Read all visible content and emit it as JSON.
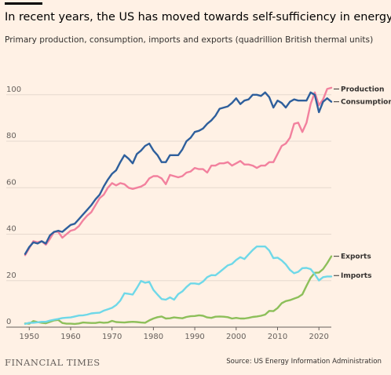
{
  "title": "In recent years, the US has moved towards self-sufficiency in energy",
  "subtitle": "Primary production, consumption, imports and exports (quadrillion British thermal units)",
  "brand": "FINANCIAL TIMES",
  "source": "Source: US Energy Information Administration",
  "chart_data": {
    "type": "line",
    "title": "In recent years, the US has moved towards self-sufficiency in energy",
    "subtitle": "Primary production, consumption, imports and exports (quadrillion British thermal units)",
    "xlim": [
      1949,
      2023
    ],
    "ylim": [
      0,
      105
    ],
    "xticks": [
      1950,
      1960,
      1970,
      1980,
      1990,
      2000,
      2010,
      2020
    ],
    "yticks": [
      0,
      20,
      40,
      60,
      80,
      100
    ],
    "grid": "horizontal",
    "legend": "end-of-line labels",
    "series": [
      {
        "name": "Production",
        "color": "#f2819e",
        "points": [
          [
            1949,
            31
          ],
          [
            1950,
            34
          ],
          [
            1951,
            37
          ],
          [
            1952,
            36.5
          ],
          [
            1953,
            37
          ],
          [
            1954,
            35.5
          ],
          [
            1955,
            38
          ],
          [
            1956,
            41
          ],
          [
            1957,
            41
          ],
          [
            1958,
            38.5
          ],
          [
            1959,
            40
          ],
          [
            1960,
            41.5
          ],
          [
            1961,
            42
          ],
          [
            1962,
            43.5
          ],
          [
            1963,
            46
          ],
          [
            1964,
            48
          ],
          [
            1965,
            49.5
          ],
          [
            1966,
            52.5
          ],
          [
            1967,
            55.5
          ],
          [
            1968,
            57
          ],
          [
            1969,
            60
          ],
          [
            1970,
            62
          ],
          [
            1971,
            61
          ],
          [
            1972,
            62
          ],
          [
            1973,
            61.5
          ],
          [
            1974,
            60
          ],
          [
            1975,
            59.5
          ],
          [
            1976,
            60
          ],
          [
            1977,
            60.5
          ],
          [
            1978,
            61.5
          ],
          [
            1979,
            64
          ],
          [
            1980,
            65
          ],
          [
            1981,
            65
          ],
          [
            1982,
            64
          ],
          [
            1983,
            61.5
          ],
          [
            1984,
            65.5
          ],
          [
            1985,
            65
          ],
          [
            1986,
            64.5
          ],
          [
            1987,
            65
          ],
          [
            1988,
            66.5
          ],
          [
            1989,
            67
          ],
          [
            1990,
            68.5
          ],
          [
            1991,
            68
          ],
          [
            1992,
            68
          ],
          [
            1993,
            66.5
          ],
          [
            1994,
            69.5
          ],
          [
            1995,
            69.5
          ],
          [
            1996,
            70.5
          ],
          [
            1997,
            70.5
          ],
          [
            1998,
            71
          ],
          [
            1999,
            69.5
          ],
          [
            2000,
            70.5
          ],
          [
            2001,
            71.5
          ],
          [
            2002,
            70
          ],
          [
            2003,
            70
          ],
          [
            2004,
            69.5
          ],
          [
            2005,
            68.5
          ],
          [
            2006,
            69.5
          ],
          [
            2007,
            69.5
          ],
          [
            2008,
            71
          ],
          [
            2009,
            71
          ],
          [
            2010,
            74.5
          ],
          [
            2011,
            78
          ],
          [
            2012,
            79
          ],
          [
            2013,
            81.5
          ],
          [
            2014,
            87.5
          ],
          [
            2015,
            88
          ],
          [
            2016,
            84
          ],
          [
            2017,
            88
          ],
          [
            2018,
            96
          ],
          [
            2019,
            101
          ],
          [
            2020,
            95.5
          ],
          [
            2021,
            98
          ],
          [
            2022,
            102.5
          ],
          [
            2023,
            103
          ]
        ]
      },
      {
        "name": "Consumption",
        "color": "#2e5f9c",
        "points": [
          [
            1949,
            31.5
          ],
          [
            1950,
            34.5
          ],
          [
            1951,
            36.5
          ],
          [
            1952,
            36
          ],
          [
            1953,
            37
          ],
          [
            1954,
            36
          ],
          [
            1955,
            39.5
          ],
          [
            1956,
            41
          ],
          [
            1957,
            41.5
          ],
          [
            1958,
            41
          ],
          [
            1959,
            42.5
          ],
          [
            1960,
            44
          ],
          [
            1961,
            44.5
          ],
          [
            1962,
            46.5
          ],
          [
            1963,
            48.5
          ],
          [
            1964,
            50.5
          ],
          [
            1965,
            52.5
          ],
          [
            1966,
            55
          ],
          [
            1967,
            57
          ],
          [
            1968,
            60.5
          ],
          [
            1969,
            63.5
          ],
          [
            1970,
            66
          ],
          [
            1971,
            67.5
          ],
          [
            1972,
            71
          ],
          [
            1973,
            74
          ],
          [
            1974,
            72.5
          ],
          [
            1975,
            70.5
          ],
          [
            1976,
            74.5
          ],
          [
            1977,
            76
          ],
          [
            1978,
            78
          ],
          [
            1979,
            79
          ],
          [
            1980,
            76
          ],
          [
            1981,
            74
          ],
          [
            1982,
            71
          ],
          [
            1983,
            71
          ],
          [
            1984,
            74
          ],
          [
            1985,
            74
          ],
          [
            1986,
            74
          ],
          [
            1987,
            76.5
          ],
          [
            1988,
            80
          ],
          [
            1989,
            81.5
          ],
          [
            1990,
            84
          ],
          [
            1991,
            84.5
          ],
          [
            1992,
            85.5
          ],
          [
            1993,
            87.5
          ],
          [
            1994,
            89
          ],
          [
            1995,
            91
          ],
          [
            1996,
            94
          ],
          [
            1997,
            94.5
          ],
          [
            1998,
            95
          ],
          [
            1999,
            96.5
          ],
          [
            2000,
            98.5
          ],
          [
            2001,
            96
          ],
          [
            2002,
            97.5
          ],
          [
            2003,
            98
          ],
          [
            2004,
            100
          ],
          [
            2005,
            100
          ],
          [
            2006,
            99.5
          ],
          [
            2007,
            101
          ],
          [
            2008,
            99
          ],
          [
            2009,
            94.5
          ],
          [
            2010,
            97.5
          ],
          [
            2011,
            96.5
          ],
          [
            2012,
            94.5
          ],
          [
            2013,
            97
          ],
          [
            2014,
            98
          ],
          [
            2015,
            97.5
          ],
          [
            2016,
            97.5
          ],
          [
            2017,
            97.5
          ],
          [
            2018,
            101
          ],
          [
            2019,
            100
          ],
          [
            2020,
            92.5
          ],
          [
            2021,
            97
          ],
          [
            2022,
            98.5
          ],
          [
            2023,
            97
          ]
        ]
      },
      {
        "name": "Exports",
        "color": "#8dbf5a",
        "points": [
          [
            1949,
            1.6
          ],
          [
            1950,
            1.5
          ],
          [
            1951,
            2.6
          ],
          [
            1952,
            2.2
          ],
          [
            1953,
            1.9
          ],
          [
            1954,
            1.7
          ],
          [
            1955,
            2.3
          ],
          [
            1956,
            2.9
          ],
          [
            1957,
            3.1
          ],
          [
            1958,
            1.8
          ],
          [
            1959,
            1.5
          ],
          [
            1960,
            1.5
          ],
          [
            1961,
            1.4
          ],
          [
            1962,
            1.6
          ],
          [
            1963,
            2
          ],
          [
            1964,
            1.9
          ],
          [
            1965,
            1.8
          ],
          [
            1966,
            1.8
          ],
          [
            1967,
            2.1
          ],
          [
            1968,
            1.9
          ],
          [
            1969,
            2
          ],
          [
            1970,
            2.7
          ],
          [
            1971,
            2.2
          ],
          [
            1972,
            2.1
          ],
          [
            1973,
            2
          ],
          [
            1974,
            2.2
          ],
          [
            1975,
            2.3
          ],
          [
            1976,
            2.2
          ],
          [
            1977,
            2
          ],
          [
            1978,
            1.9
          ],
          [
            1979,
            2.9
          ],
          [
            1980,
            3.7
          ],
          [
            1981,
            4.3
          ],
          [
            1982,
            4.6
          ],
          [
            1983,
            3.7
          ],
          [
            1984,
            3.8
          ],
          [
            1985,
            4.2
          ],
          [
            1986,
            4
          ],
          [
            1987,
            3.8
          ],
          [
            1988,
            4.4
          ],
          [
            1989,
            4.7
          ],
          [
            1990,
            4.8
          ],
          [
            1991,
            5.1
          ],
          [
            1992,
            4.9
          ],
          [
            1993,
            4.2
          ],
          [
            1994,
            4
          ],
          [
            1995,
            4.5
          ],
          [
            1996,
            4.6
          ],
          [
            1997,
            4.5
          ],
          [
            1998,
            4.3
          ],
          [
            1999,
            3.7
          ],
          [
            2000,
            4
          ],
          [
            2001,
            3.7
          ],
          [
            2002,
            3.7
          ],
          [
            2003,
            4
          ],
          [
            2004,
            4.4
          ],
          [
            2005,
            4.6
          ],
          [
            2006,
            4.9
          ],
          [
            2007,
            5.4
          ],
          [
            2008,
            7
          ],
          [
            2009,
            6.9
          ],
          [
            2010,
            8.2
          ],
          [
            2011,
            10.3
          ],
          [
            2012,
            11.2
          ],
          [
            2013,
            11.6
          ],
          [
            2014,
            12.3
          ],
          [
            2015,
            12.9
          ],
          [
            2016,
            14.1
          ],
          [
            2017,
            17.8
          ],
          [
            2018,
            21.2
          ],
          [
            2019,
            23.4
          ],
          [
            2020,
            23.5
          ],
          [
            2021,
            25
          ],
          [
            2022,
            27.5
          ],
          [
            2023,
            30.5
          ]
        ]
      },
      {
        "name": "Imports",
        "color": "#6fd8e8",
        "points": [
          [
            1949,
            1.4
          ],
          [
            1950,
            1.9
          ],
          [
            1951,
            1.9
          ],
          [
            1952,
            2.1
          ],
          [
            1953,
            2.3
          ],
          [
            1954,
            2.3
          ],
          [
            1955,
            2.8
          ],
          [
            1956,
            3.2
          ],
          [
            1957,
            3.5
          ],
          [
            1958,
            3.9
          ],
          [
            1959,
            4.1
          ],
          [
            1960,
            4.2
          ],
          [
            1961,
            4.6
          ],
          [
            1962,
            5
          ],
          [
            1963,
            5.1
          ],
          [
            1964,
            5.4
          ],
          [
            1965,
            5.9
          ],
          [
            1966,
            6.1
          ],
          [
            1967,
            6.2
          ],
          [
            1968,
            7.1
          ],
          [
            1969,
            7.7
          ],
          [
            1970,
            8.3
          ],
          [
            1971,
            9.5
          ],
          [
            1972,
            11.4
          ],
          [
            1973,
            14.6
          ],
          [
            1974,
            14.3
          ],
          [
            1975,
            14
          ],
          [
            1976,
            16.8
          ],
          [
            1977,
            19.9
          ],
          [
            1978,
            19.1
          ],
          [
            1979,
            19.5
          ],
          [
            1980,
            16
          ],
          [
            1981,
            14
          ],
          [
            1982,
            12.1
          ],
          [
            1983,
            11.8
          ],
          [
            1984,
            12.8
          ],
          [
            1985,
            11.8
          ],
          [
            1986,
            14.2
          ],
          [
            1987,
            15.4
          ],
          [
            1988,
            17.3
          ],
          [
            1989,
            18.8
          ],
          [
            1990,
            18.8
          ],
          [
            1991,
            18.5
          ],
          [
            1992,
            19.6
          ],
          [
            1993,
            21.5
          ],
          [
            1994,
            22.4
          ],
          [
            1995,
            22.3
          ],
          [
            1996,
            23.7
          ],
          [
            1997,
            25.2
          ],
          [
            1998,
            26.6
          ],
          [
            1999,
            27.2
          ],
          [
            2000,
            28.9
          ],
          [
            2001,
            30.1
          ],
          [
            2002,
            29.3
          ],
          [
            2003,
            31.3
          ],
          [
            2004,
            33.2
          ],
          [
            2005,
            34.7
          ],
          [
            2006,
            34.7
          ],
          [
            2007,
            34.7
          ],
          [
            2008,
            33
          ],
          [
            2009,
            29.7
          ],
          [
            2010,
            29.9
          ],
          [
            2011,
            28.7
          ],
          [
            2012,
            27
          ],
          [
            2013,
            24.6
          ],
          [
            2014,
            23.2
          ],
          [
            2015,
            23.8
          ],
          [
            2016,
            25.4
          ],
          [
            2017,
            25.5
          ],
          [
            2018,
            25
          ],
          [
            2019,
            22.8
          ],
          [
            2020,
            20.1
          ],
          [
            2021,
            21.5
          ],
          [
            2022,
            21.8
          ],
          [
            2023,
            21.8
          ]
        ]
      }
    ]
  }
}
